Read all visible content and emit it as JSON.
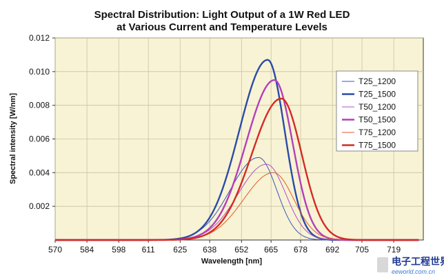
{
  "chart_data": {
    "type": "line",
    "title": "Spectral Distribution: Light Output of a 1W Red LED",
    "subtitle": "at Various Current and Temperature Levels",
    "xlabel": "Wavelength [nm]",
    "ylabel": "Spectral intensity [W/nm]",
    "xlim": [
      570,
      732
    ],
    "ylim": [
      0,
      0.012
    ],
    "x_ticks": [
      "570",
      "584",
      "598",
      "611",
      "625",
      "638",
      "652",
      "665",
      "678",
      "692",
      "705",
      "719"
    ],
    "y_ticks": [
      "0.002",
      "0.004",
      "0.006",
      "0.008",
      "0.010",
      "0.012"
    ],
    "grid": true,
    "legend_position": "right",
    "background_color": "#f7f3d4",
    "series": [
      {
        "name": "T25_1200",
        "color": "#3a55b8",
        "width": 1.0,
        "peak_x": 659.5,
        "peak_y": 0.0049,
        "left_sigma": 12.5,
        "right_sigma": 8.0,
        "points": [
          [
            598,
            0.0
          ],
          [
            611,
            0.00015
          ],
          [
            625,
            0.0005
          ],
          [
            638,
            0.0016
          ],
          [
            645,
            0.0027
          ],
          [
            652,
            0.004
          ],
          [
            659.5,
            0.0049
          ],
          [
            664,
            0.0043
          ],
          [
            668,
            0.0025
          ],
          [
            672,
            0.001
          ],
          [
            678,
            0.0003
          ],
          [
            692,
            0.0
          ],
          [
            705,
            0.0
          ]
        ]
      },
      {
        "name": "T25_1500",
        "color": "#2a4aa8",
        "width": 2.4,
        "peak_x": 663.5,
        "peak_y": 0.0107,
        "left_sigma": 12.5,
        "right_sigma": 7.5,
        "points": [
          [
            598,
            0.0
          ],
          [
            611,
            0.0003
          ],
          [
            625,
            0.001
          ],
          [
            638,
            0.0033
          ],
          [
            645,
            0.0058
          ],
          [
            652,
            0.0085
          ],
          [
            658,
            0.0102
          ],
          [
            663.5,
            0.0107
          ],
          [
            668,
            0.0088
          ],
          [
            672,
            0.0055
          ],
          [
            678,
            0.0018
          ],
          [
            685,
            0.0004
          ],
          [
            692,
            0.0
          ],
          [
            705,
            0.0
          ]
        ]
      },
      {
        "name": "T50_1200",
        "color": "#b24fc4",
        "width": 1.0,
        "peak_x": 663.0,
        "peak_y": 0.0045,
        "left_sigma": 12.5,
        "right_sigma": 8.5,
        "points": [
          [
            598,
            0.0
          ],
          [
            611,
            0.0001
          ],
          [
            625,
            0.0004
          ],
          [
            638,
            0.0013
          ],
          [
            652,
            0.0033
          ],
          [
            663,
            0.0045
          ],
          [
            668,
            0.0039
          ],
          [
            672,
            0.0027
          ],
          [
            678,
            0.0012
          ],
          [
            685,
            0.0003
          ],
          [
            692,
            0.0
          ],
          [
            705,
            0.0
          ]
        ]
      },
      {
        "name": "T50_1500",
        "color": "#b43fb8",
        "width": 2.4,
        "peak_x": 666.5,
        "peak_y": 0.0095,
        "left_sigma": 12.5,
        "right_sigma": 8.0,
        "points": [
          [
            598,
            0.0
          ],
          [
            611,
            0.0002
          ],
          [
            625,
            0.0007
          ],
          [
            638,
            0.0023
          ],
          [
            652,
            0.0058
          ],
          [
            660,
            0.0083
          ],
          [
            666.5,
            0.0095
          ],
          [
            671,
            0.0083
          ],
          [
            675,
            0.0058
          ],
          [
            680,
            0.003
          ],
          [
            686,
            0.0009
          ],
          [
            692,
            0.0002
          ],
          [
            705,
            0.0
          ]
        ]
      },
      {
        "name": "T75_1200",
        "color": "#e05a2b",
        "width": 1.0,
        "peak_x": 666.0,
        "peak_y": 0.004,
        "left_sigma": 13.0,
        "right_sigma": 9.0,
        "points": [
          [
            598,
            0.0
          ],
          [
            611,
            0.0001
          ],
          [
            625,
            0.0003
          ],
          [
            638,
            0.001
          ],
          [
            652,
            0.0026
          ],
          [
            666,
            0.004
          ],
          [
            671,
            0.0036
          ],
          [
            676,
            0.0025
          ],
          [
            682,
            0.0011
          ],
          [
            690,
            0.0002
          ],
          [
            705,
            0.0
          ]
        ]
      },
      {
        "name": "T75_1500",
        "color": "#d42a24",
        "width": 2.4,
        "peak_x": 669.5,
        "peak_y": 0.0084,
        "left_sigma": 13.0,
        "right_sigma": 9.0,
        "points": [
          [
            598,
            0.0
          ],
          [
            611,
            0.0002
          ],
          [
            625,
            0.0006
          ],
          [
            638,
            0.0018
          ],
          [
            652,
            0.0046
          ],
          [
            662,
            0.0073
          ],
          [
            669.5,
            0.0084
          ],
          [
            674,
            0.0075
          ],
          [
            679,
            0.0052
          ],
          [
            685,
            0.0023
          ],
          [
            692,
            0.0006
          ],
          [
            705,
            0.0001
          ],
          [
            719,
            0.0
          ]
        ]
      }
    ]
  },
  "watermark": {
    "logo_text": "电子工程世界",
    "url_text": "eeworld.com.cn"
  }
}
